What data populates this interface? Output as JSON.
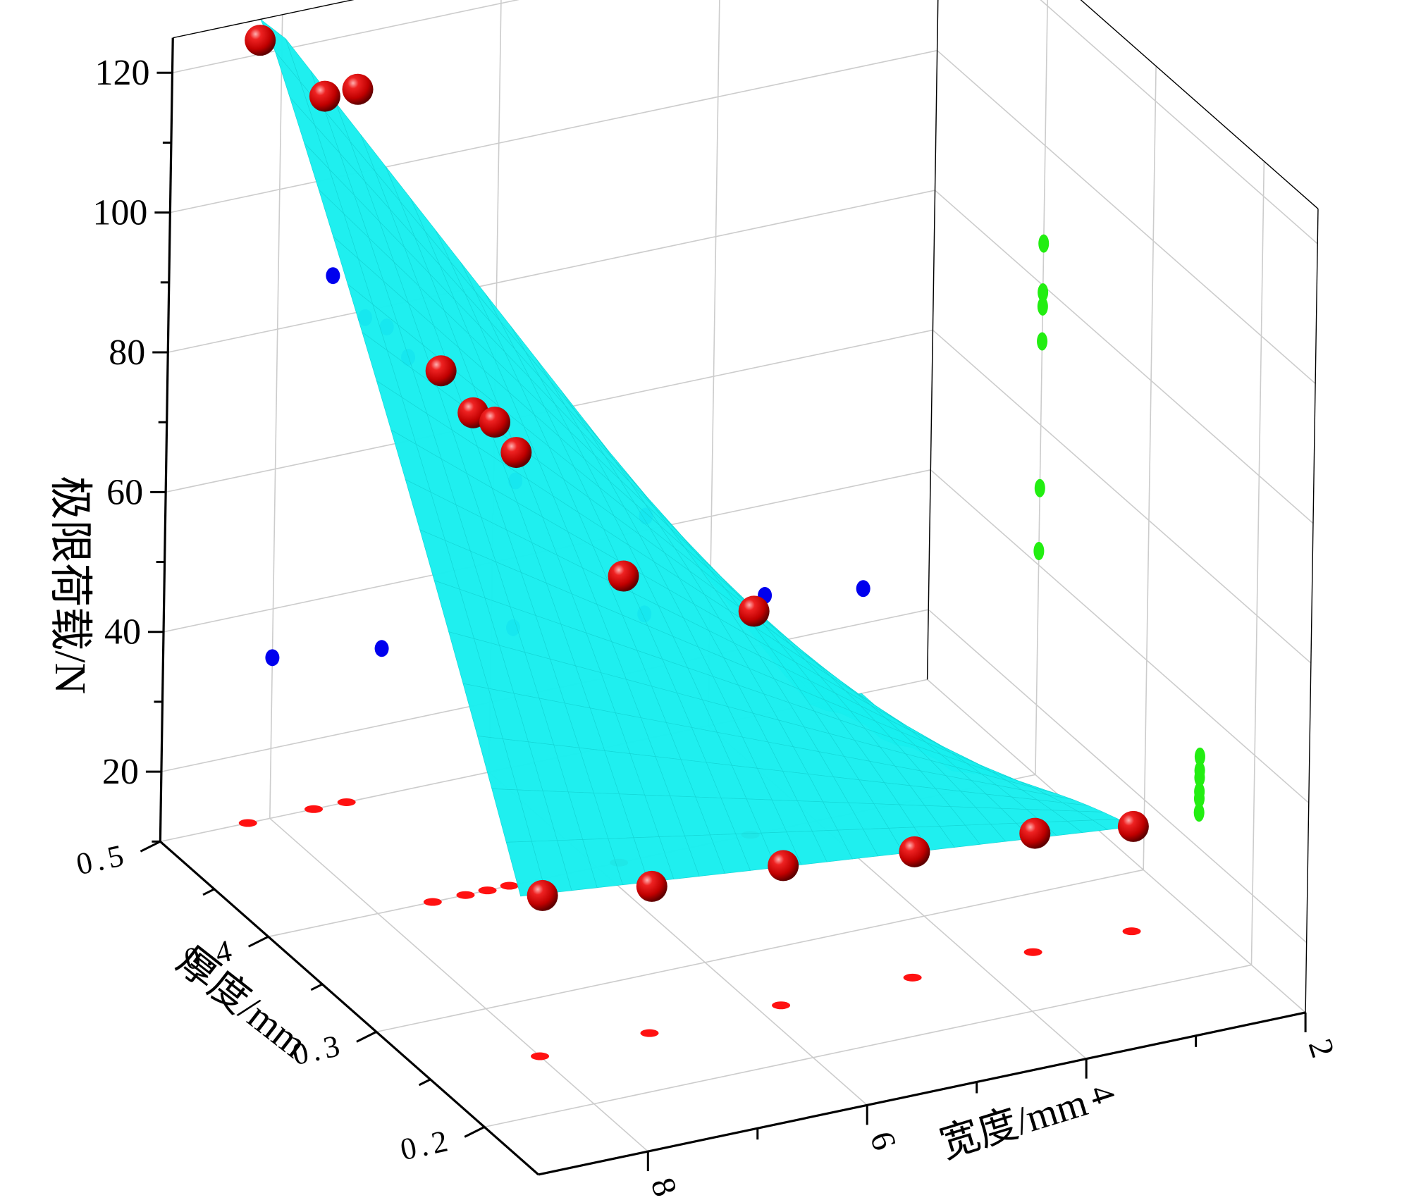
{
  "chart_data": {
    "type": "scatter",
    "variant": "3d-scatter-with-fitted-surface",
    "zlabel": "极限荷载/N",
    "ylabel": "厚度/mm",
    "xlabel": "宽度/mm",
    "z_ticks": [
      "20",
      "40",
      "60",
      "80",
      "100",
      "120"
    ],
    "y_ticks": [
      "0.2",
      "0.3",
      "0.4",
      "0.5"
    ],
    "x_ticks": [
      "2",
      "4",
      "6",
      "8"
    ],
    "x_range": [
      2,
      9
    ],
    "y_range": [
      0.15,
      0.5
    ],
    "z_range": [
      10,
      125
    ],
    "grid": true,
    "colors": {
      "points": "#cc0000",
      "xz_projection": "#0000ee",
      "yz_projection": "#22ee11",
      "xy_projection": "#ff1111",
      "surface": "#18eeee",
      "grid": "#cccccc"
    },
    "points": [
      {
        "x": 8.2,
        "y": 0.5,
        "z": 122
      },
      {
        "x": 7.6,
        "y": 0.5,
        "z": 112
      },
      {
        "x": 7.3,
        "y": 0.5,
        "z": 112
      },
      {
        "x": 7.5,
        "y": 0.4,
        "z": 86
      },
      {
        "x": 7.2,
        "y": 0.4,
        "z": 79
      },
      {
        "x": 7.0,
        "y": 0.4,
        "z": 77
      },
      {
        "x": 6.8,
        "y": 0.4,
        "z": 72
      },
      {
        "x": 5.8,
        "y": 0.4,
        "z": 51
      },
      {
        "x": 4.6,
        "y": 0.4,
        "z": 42
      },
      {
        "x": 8.0,
        "y": 0.25,
        "z": 33
      },
      {
        "x": 7.0,
        "y": 0.25,
        "z": 31
      },
      {
        "x": 5.8,
        "y": 0.25,
        "z": 30
      },
      {
        "x": 4.6,
        "y": 0.25,
        "z": 28
      },
      {
        "x": 3.5,
        "y": 0.25,
        "z": 27
      },
      {
        "x": 2.6,
        "y": 0.25,
        "z": 25
      }
    ]
  }
}
